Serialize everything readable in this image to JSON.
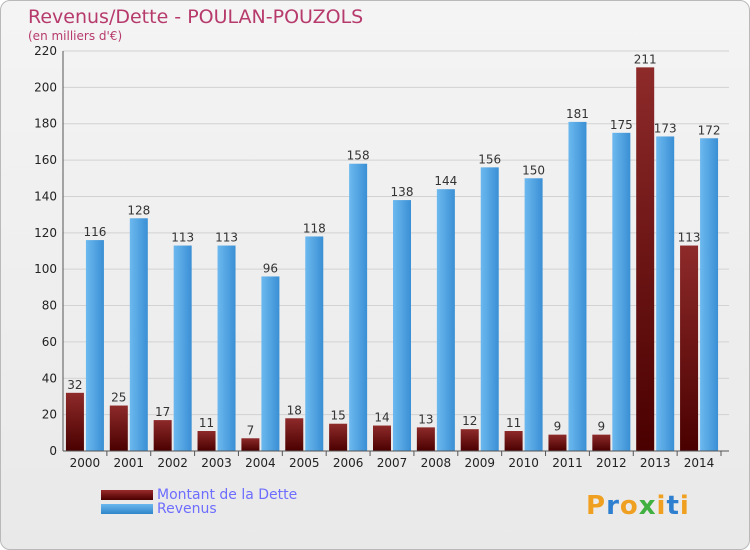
{
  "header": {
    "title": "Revenus/Dette - POULAN-POUZOLS",
    "subtitle": "(en milliers d'€)"
  },
  "legend": {
    "debt": "Montant de la Dette",
    "revenue": "Revenus"
  },
  "brand": "Proxiti",
  "colors": {
    "debt": "#7a1a1a",
    "revenue": "#4aa3e6",
    "brand_orange": "#f0a020",
    "brand_blue": "#2f7fd0"
  },
  "chart_data": {
    "type": "bar",
    "title": "Revenus/Dette - POULAN-POUZOLS",
    "ylabel": "(en milliers d'€)",
    "xlabel": "",
    "categories": [
      "2000",
      "2001",
      "2002",
      "2003",
      "2004",
      "2005",
      "2006",
      "2007",
      "2008",
      "2009",
      "2010",
      "2011",
      "2012",
      "2013",
      "2014"
    ],
    "series": [
      {
        "name": "Montant de la Dette",
        "values": [
          32,
          25,
          17,
          11,
          7,
          18,
          15,
          14,
          13,
          12,
          11,
          9,
          9,
          211,
          113
        ]
      },
      {
        "name": "Revenus",
        "values": [
          116,
          128,
          113,
          113,
          96,
          118,
          158,
          138,
          144,
          156,
          150,
          181,
          175,
          173,
          172
        ]
      }
    ],
    "ylim": [
      0,
      220
    ],
    "yticks": [
      0,
      20,
      40,
      60,
      80,
      100,
      120,
      140,
      160,
      180,
      200,
      220
    ],
    "grid": true,
    "legend_position": "bottom-left"
  }
}
